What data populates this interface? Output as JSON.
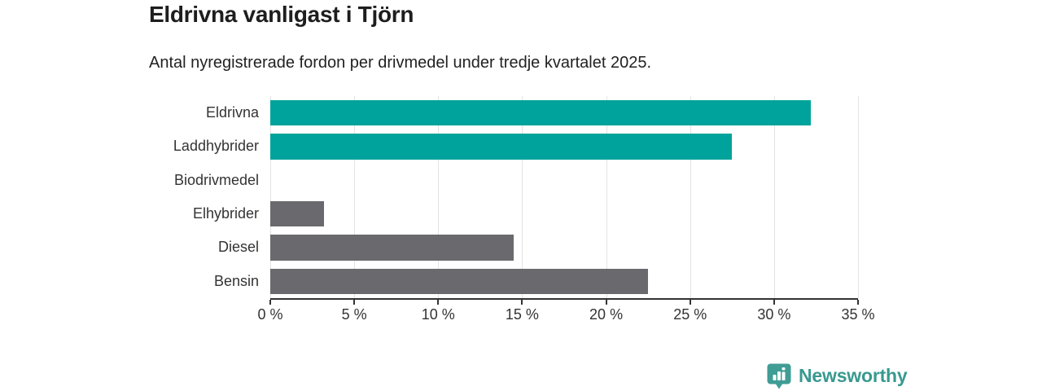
{
  "page": {
    "background": "#ffffff"
  },
  "chart_data": {
    "type": "bar",
    "orientation": "horizontal",
    "title": "Eldrivna vanligast i Tjörn",
    "subtitle": "Antal nyregistrerade fordon per drivmedel under tredje kvartalet 2025.",
    "categories": [
      "Eldrivna",
      "Laddhybrider",
      "Biodrivmedel",
      "Elhybrider",
      "Diesel",
      "Bensin"
    ],
    "values": [
      32.2,
      27.5,
      0,
      3.2,
      14.5,
      22.5
    ],
    "unit": "%",
    "xlim": [
      0,
      35
    ],
    "xticks": [
      0,
      5,
      10,
      15,
      20,
      25,
      30,
      35
    ],
    "xtick_labels": [
      "0 %",
      "5 %",
      "10 %",
      "15 %",
      "20 %",
      "25 %",
      "30 %",
      "35 %"
    ],
    "bar_colors": [
      "#00a39b",
      "#00a39b",
      "#69696e",
      "#69696e",
      "#69696e",
      "#69696e"
    ],
    "accent_color": "#00a39b",
    "neutral_color": "#69696e",
    "grid": true,
    "gridline_color": "#e3e3e3",
    "axis_color": "#333333",
    "legend": false
  },
  "footer": {
    "brand": "Newsworthy",
    "brand_color": "#38998f",
    "icon": "newsworthy-bubble-barchart-icon",
    "icon_color": "#3f9d95"
  }
}
